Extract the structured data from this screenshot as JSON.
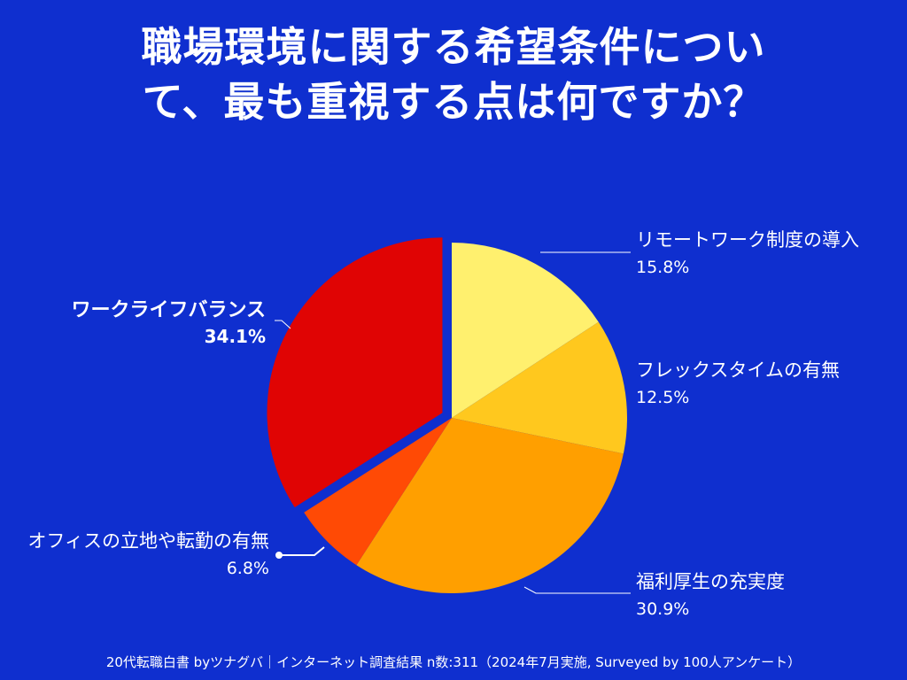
{
  "title": {
    "line1": "職場環境に関する希望条件につい",
    "line2": "て、最も重視する点は何ですか？"
  },
  "footer": "20代転職白書 byツナグバ｜インターネット調査結果 n数:311（2024年7月実施, Surveyed by 100人アンケート）",
  "chart_data": {
    "type": "pie",
    "title": "職場環境に関する希望条件について、最も重視する点は何ですか？",
    "slices": [
      {
        "label": "リモートワーク制度の導入",
        "value": 15.8,
        "display": "15.8%",
        "color": "#fff06e"
      },
      {
        "label": "フレックスタイムの有無",
        "value": 12.5,
        "display": "12.5%",
        "color": "#ffc81e"
      },
      {
        "label": "福利厚生の充実度",
        "value": 30.9,
        "display": "30.9%",
        "color": "#ff9f00"
      },
      {
        "label": "オフィスの立地や転勤の有無",
        "value": 6.8,
        "display": "6.8%",
        "color": "#ff4a05"
      },
      {
        "label": "ワークライフバランス",
        "value": 34.1,
        "display": "34.1%",
        "color": "#e00404",
        "highlight": true
      }
    ],
    "start_angle": "12 o'clock, clockwise",
    "exploded": [
      "ワークライフバランス"
    ],
    "legend": "none (direct labels with leader lines)"
  }
}
